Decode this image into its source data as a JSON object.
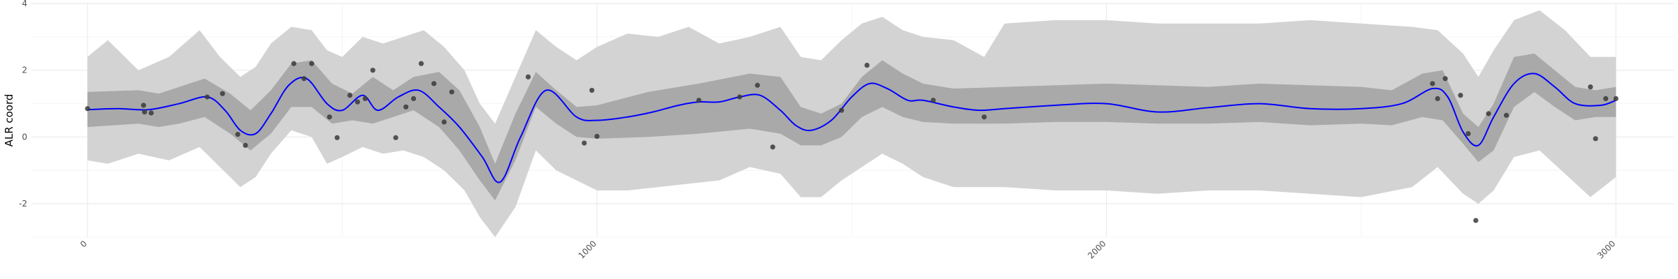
{
  "chart_data": {
    "type": "line",
    "ylabel": "ALR coord",
    "xlabel": "",
    "xlim": [
      -110,
      3115
    ],
    "ylim": [
      -3.0,
      4.0
    ],
    "x_ticks": [
      0,
      1000,
      2000,
      3000
    ],
    "x_tick_labels": [
      "0",
      "1000",
      "2000",
      "3000"
    ],
    "y_ticks": [
      -2,
      0,
      2,
      4
    ],
    "y_tick_labels": [
      "-2",
      "0",
      "2",
      "4"
    ],
    "grid": true,
    "colors": {
      "mean_line": "#0000ff",
      "inner_band": "#a9a9a9",
      "outer_band": "#d3d3d3",
      "points": "#3a3a3a",
      "grid_major": "#ebebeb",
      "grid_minor": "#f4f4f4"
    },
    "mean": {
      "x": [
        0,
        60,
        120,
        180,
        235,
        270,
        300,
        330,
        360,
        395,
        430,
        470,
        500,
        540,
        570,
        610,
        650,
        690,
        730,
        775,
        810,
        850,
        900,
        960,
        1000,
        1060,
        1110,
        1160,
        1200,
        1240,
        1280,
        1320,
        1360,
        1390,
        1420,
        1460,
        1500,
        1535,
        1570,
        1610,
        1640,
        1700,
        1750,
        1800,
        1900,
        2000,
        2100,
        2200,
        2300,
        2400,
        2500,
        2580,
        2640,
        2670,
        2700,
        2730,
        2760,
        2800,
        2840,
        2880,
        2920,
        2970,
        3000
      ],
      "y": [
        0.82,
        0.85,
        0.82,
        1.0,
        1.2,
        0.8,
        0.2,
        0.1,
        0.7,
        1.55,
        1.75,
        1.0,
        0.8,
        1.25,
        0.8,
        1.2,
        1.4,
        0.9,
        0.3,
        -0.6,
        -1.35,
        0.0,
        1.4,
        0.6,
        0.5,
        0.6,
        0.75,
        0.95,
        1.05,
        1.05,
        1.2,
        1.25,
        0.8,
        0.35,
        0.2,
        0.5,
        1.2,
        1.6,
        1.45,
        1.1,
        1.1,
        0.9,
        0.8,
        0.85,
        0.95,
        1.0,
        0.75,
        0.88,
        1.0,
        0.85,
        0.85,
        1.0,
        1.45,
        1.2,
        0.15,
        -0.25,
        0.6,
        1.6,
        1.9,
        1.5,
        1.0,
        0.95,
        1.1
      ]
    },
    "inner_band": {
      "x": [
        0,
        100,
        140,
        180,
        230,
        280,
        320,
        360,
        400,
        440,
        480,
        520,
        560,
        600,
        640,
        690,
        730,
        770,
        800,
        840,
        880,
        920,
        960,
        1000,
        1100,
        1200,
        1300,
        1360,
        1400,
        1440,
        1480,
        1520,
        1560,
        1600,
        1640,
        1700,
        1800,
        1900,
        2000,
        2100,
        2200,
        2300,
        2400,
        2500,
        2560,
        2620,
        2660,
        2700,
        2730,
        2760,
        2800,
        2840,
        2880,
        2920,
        2960,
        3000
      ],
      "lower": [
        0.3,
        0.4,
        0.3,
        0.4,
        0.6,
        0.1,
        -0.4,
        0.1,
        0.9,
        0.9,
        0.4,
        0.5,
        0.4,
        0.6,
        0.8,
        0.3,
        -0.4,
        -1.3,
        -1.9,
        -0.7,
        0.9,
        0.4,
        0.0,
        -0.05,
        0.0,
        0.1,
        0.25,
        0.1,
        -0.25,
        -0.25,
        0.0,
        0.6,
        0.9,
        0.6,
        0.45,
        0.4,
        0.4,
        0.45,
        0.45,
        0.4,
        0.4,
        0.45,
        0.35,
        0.4,
        0.35,
        0.6,
        0.5,
        -0.2,
        -0.75,
        -0.4,
        0.9,
        1.35,
        0.9,
        0.5,
        0.6,
        0.6
      ],
      "upper": [
        1.35,
        1.4,
        1.3,
        1.5,
        1.75,
        1.3,
        0.8,
        1.4,
        2.2,
        2.3,
        1.6,
        1.3,
        1.8,
        1.4,
        1.8,
        1.95,
        1.4,
        0.3,
        -0.8,
        0.7,
        1.95,
        1.4,
        0.9,
        0.95,
        1.35,
        1.6,
        1.9,
        1.8,
        0.9,
        0.7,
        1.0,
        1.8,
        2.3,
        1.9,
        1.6,
        1.45,
        1.5,
        1.55,
        1.6,
        1.55,
        1.5,
        1.6,
        1.55,
        1.5,
        1.4,
        1.9,
        2.0,
        0.7,
        0.3,
        1.0,
        2.4,
        2.5,
        2.0,
        1.5,
        1.4,
        1.5
      ]
    },
    "outer_band": {
      "x": [
        0,
        40,
        100,
        160,
        220,
        260,
        300,
        330,
        360,
        400,
        440,
        470,
        500,
        540,
        580,
        620,
        660,
        700,
        740,
        770,
        800,
        840,
        880,
        920,
        960,
        1000,
        1060,
        1120,
        1180,
        1240,
        1300,
        1360,
        1400,
        1440,
        1480,
        1520,
        1560,
        1600,
        1640,
        1700,
        1760,
        1800,
        1900,
        2000,
        2100,
        2200,
        2300,
        2400,
        2500,
        2600,
        2650,
        2700,
        2730,
        2760,
        2800,
        2850,
        2900,
        2950,
        3000
      ],
      "lower": [
        -0.7,
        -0.8,
        -0.5,
        -0.7,
        -0.3,
        -0.9,
        -1.5,
        -1.2,
        -0.5,
        0.2,
        0.0,
        -0.8,
        -0.6,
        -0.3,
        -0.5,
        -0.4,
        -0.6,
        -1.0,
        -1.6,
        -2.4,
        -3.0,
        -2.1,
        -0.4,
        -1.0,
        -1.3,
        -1.6,
        -1.6,
        -1.5,
        -1.4,
        -1.3,
        -0.9,
        -1.1,
        -1.8,
        -1.8,
        -1.3,
        -0.9,
        -0.5,
        -0.8,
        -1.2,
        -1.5,
        -1.5,
        -1.5,
        -1.6,
        -1.6,
        -1.7,
        -1.6,
        -1.6,
        -1.7,
        -1.8,
        -1.5,
        -0.9,
        -1.7,
        -2.0,
        -1.6,
        -0.6,
        -0.4,
        -1.1,
        -1.8,
        -1.2
      ],
      "upper": [
        2.4,
        2.9,
        2.0,
        2.4,
        3.2,
        2.4,
        1.8,
        2.1,
        2.8,
        3.3,
        3.2,
        2.6,
        2.4,
        3.0,
        2.8,
        3.0,
        3.2,
        2.7,
        2.0,
        1.0,
        0.4,
        1.8,
        3.2,
        2.7,
        2.3,
        2.7,
        3.1,
        3.0,
        3.3,
        2.8,
        3.0,
        3.3,
        2.4,
        2.3,
        2.9,
        3.4,
        3.6,
        3.2,
        3.0,
        2.9,
        2.4,
        3.4,
        3.5,
        3.5,
        3.4,
        3.4,
        3.4,
        3.5,
        3.4,
        3.3,
        3.2,
        2.5,
        1.8,
        2.6,
        3.5,
        3.8,
        3.2,
        2.4,
        2.4
      ]
    },
    "points": {
      "x": [
        0,
        110,
        112,
        125,
        235,
        265,
        295,
        310,
        405,
        425,
        440,
        475,
        490,
        515,
        530,
        545,
        560,
        605,
        625,
        640,
        655,
        680,
        700,
        715,
        865,
        975,
        990,
        1000,
        1200,
        1280,
        1315,
        1345,
        1480,
        1530,
        1660,
        1760,
        2640,
        2650,
        2665,
        2695,
        2710,
        2725,
        2750,
        2785,
        2950,
        2960,
        2980,
        3000
      ],
      "y": [
        0.85,
        0.95,
        0.75,
        0.72,
        1.2,
        1.3,
        0.08,
        -0.25,
        2.2,
        1.75,
        2.2,
        0.6,
        -0.02,
        1.25,
        1.05,
        1.15,
        2.0,
        -0.02,
        0.9,
        1.15,
        2.2,
        1.6,
        0.45,
        1.35,
        1.8,
        -0.18,
        1.4,
        0.02,
        1.1,
        1.2,
        1.55,
        -0.3,
        0.8,
        2.15,
        1.1,
        0.6,
        1.6,
        1.15,
        1.75,
        1.25,
        0.1,
        -2.5,
        0.7,
        0.65,
        1.5,
        -0.05,
        1.15,
        1.15
      ]
    }
  }
}
